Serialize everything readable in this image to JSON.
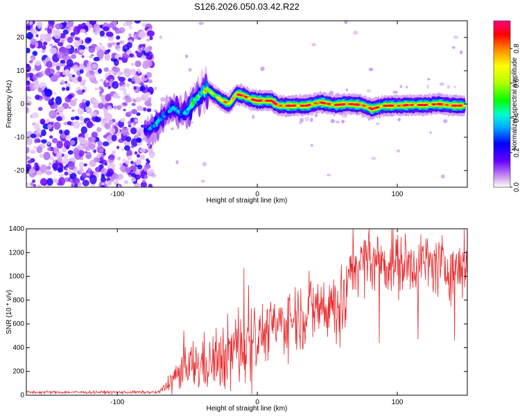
{
  "title": "S126.2026.050.03.42.R22",
  "colors": {
    "snr_line": "#e8282b",
    "noise_dots": "#8a3cf0",
    "frame": "#000000"
  },
  "chart_data": [
    {
      "type": "heatmap",
      "name": "spectrogram",
      "xlabel": "Height of straight line (km)",
      "ylabel": "Frequency (Hz)",
      "xlim": [
        -165,
        150
      ],
      "ylim": [
        -25,
        25
      ],
      "xticks": [
        -100,
        0,
        100
      ],
      "xtick_labels": [
        "-100",
        "0",
        "100"
      ],
      "yticks": [
        -20,
        -10,
        0,
        10,
        20
      ],
      "ytick_labels": [
        "-20",
        "-10",
        "0",
        "10",
        "20"
      ],
      "noise_region": {
        "x_from": -165,
        "x_to": -75
      },
      "ridge": [
        {
          "x": -80,
          "y": -8,
          "amp": 0.25
        },
        {
          "x": -75,
          "y": -7,
          "amp": 0.3
        },
        {
          "x": -70,
          "y": -5,
          "amp": 0.35
        },
        {
          "x": -65,
          "y": -3,
          "amp": 0.3
        },
        {
          "x": -60,
          "y": -1,
          "amp": 0.35
        },
        {
          "x": -55,
          "y": -3,
          "amp": 0.3
        },
        {
          "x": -50,
          "y": -2,
          "amp": 0.4
        },
        {
          "x": -45,
          "y": 1,
          "amp": 0.45
        },
        {
          "x": -40,
          "y": 3,
          "amp": 0.5
        },
        {
          "x": -36,
          "y": 4.5,
          "amp": 0.55
        },
        {
          "x": -30,
          "y": 2.5,
          "amp": 0.65
        },
        {
          "x": -25,
          "y": 1,
          "amp": 0.7
        },
        {
          "x": -20,
          "y": 0,
          "amp": 0.75
        },
        {
          "x": -15,
          "y": 3,
          "amp": 0.8
        },
        {
          "x": -10,
          "y": 2.5,
          "amp": 0.85
        },
        {
          "x": -5,
          "y": 1.5,
          "amp": 0.85
        },
        {
          "x": 0,
          "y": 1,
          "amp": 0.9
        },
        {
          "x": 5,
          "y": 1,
          "amp": 0.9
        },
        {
          "x": 10,
          "y": 1,
          "amp": 0.9
        },
        {
          "x": 15,
          "y": -0.5,
          "amp": 0.85
        },
        {
          "x": 25,
          "y": -0.5,
          "amp": 0.85
        },
        {
          "x": 35,
          "y": -0.5,
          "amp": 0.85
        },
        {
          "x": 45,
          "y": 0.5,
          "amp": 0.85
        },
        {
          "x": 55,
          "y": -0.3,
          "amp": 0.85
        },
        {
          "x": 65,
          "y": 0,
          "amp": 0.9
        },
        {
          "x": 75,
          "y": -0.3,
          "amp": 0.85
        },
        {
          "x": 82,
          "y": -1.5,
          "amp": 0.85
        },
        {
          "x": 90,
          "y": -0.5,
          "amp": 0.85
        },
        {
          "x": 100,
          "y": -0.5,
          "amp": 0.85
        },
        {
          "x": 110,
          "y": -0.3,
          "amp": 0.85
        },
        {
          "x": 120,
          "y": -0.3,
          "amp": 0.85
        },
        {
          "x": 130,
          "y": 0,
          "amp": 0.85
        },
        {
          "x": 140,
          "y": -0.5,
          "amp": 0.85
        },
        {
          "x": 148,
          "y": -0.5,
          "amp": 0.85
        }
      ],
      "colorbar": {
        "label": "Normalized spectral amplitude",
        "range": [
          0.0,
          0.96
        ],
        "ticks": [
          0.0,
          0.2,
          0.4,
          0.6,
          0.8
        ],
        "tick_labels": [
          "0.0",
          "0.2",
          "0.4",
          "0.6",
          "0.8"
        ],
        "stops": [
          {
            "v": 0.0,
            "color": "#ffffff"
          },
          {
            "v": 0.05,
            "color": "#d6a8f0"
          },
          {
            "v": 0.15,
            "color": "#6a00ff"
          },
          {
            "v": 0.25,
            "color": "#0000ff"
          },
          {
            "v": 0.35,
            "color": "#00b0ff"
          },
          {
            "v": 0.42,
            "color": "#00ffd0"
          },
          {
            "v": 0.5,
            "color": "#00ff00"
          },
          {
            "v": 0.6,
            "color": "#b0ff00"
          },
          {
            "v": 0.7,
            "color": "#ffff00"
          },
          {
            "v": 0.8,
            "color": "#ff8000"
          },
          {
            "v": 0.88,
            "color": "#ff0000"
          },
          {
            "v": 0.96,
            "color": "#ff0080"
          }
        ]
      }
    },
    {
      "type": "line",
      "name": "snr",
      "xlabel": "Height of straight line (km)",
      "ylabel": "SNR (10 * v/v)",
      "xlim": [
        -165,
        150
      ],
      "ylim": [
        0,
        1400
      ],
      "xticks": [
        -100,
        0,
        100
      ],
      "xtick_labels": [
        "-100",
        "0",
        "100"
      ],
      "yticks": [
        0,
        200,
        400,
        600,
        800,
        1000,
        1200,
        1400
      ],
      "ytick_labels": [
        "0",
        "200",
        "400",
        "600",
        "800",
        "1000",
        "1200",
        "1400"
      ],
      "trend": [
        {
          "x": -165,
          "y": 25
        },
        {
          "x": -70,
          "y": 25
        },
        {
          "x": -63,
          "y": 100
        },
        {
          "x": -55,
          "y": 200
        },
        {
          "x": -45,
          "y": 250
        },
        {
          "x": -30,
          "y": 280
        },
        {
          "x": -20,
          "y": 350
        },
        {
          "x": -10,
          "y": 450
        },
        {
          "x": 0,
          "y": 500
        },
        {
          "x": 10,
          "y": 560
        },
        {
          "x": 20,
          "y": 620
        },
        {
          "x": 30,
          "y": 680
        },
        {
          "x": 40,
          "y": 720
        },
        {
          "x": 50,
          "y": 760
        },
        {
          "x": 60,
          "y": 780
        },
        {
          "x": 64,
          "y": 790
        },
        {
          "x": 66,
          "y": 1100
        },
        {
          "x": 80,
          "y": 1130
        },
        {
          "x": 100,
          "y": 1100
        },
        {
          "x": 120,
          "y": 1110
        },
        {
          "x": 140,
          "y": 1060
        },
        {
          "x": 150,
          "y": 1080
        }
      ],
      "dips": [
        {
          "x": 59,
          "y": 400
        },
        {
          "x": 87,
          "y": 440
        },
        {
          "x": 115,
          "y": 470
        },
        {
          "x": 141,
          "y": 460
        }
      ],
      "spikes": [
        {
          "x": 80,
          "y": 1400
        },
        {
          "x": 97,
          "y": 1400
        },
        {
          "x": 148,
          "y": 1400
        }
      ]
    }
  ]
}
